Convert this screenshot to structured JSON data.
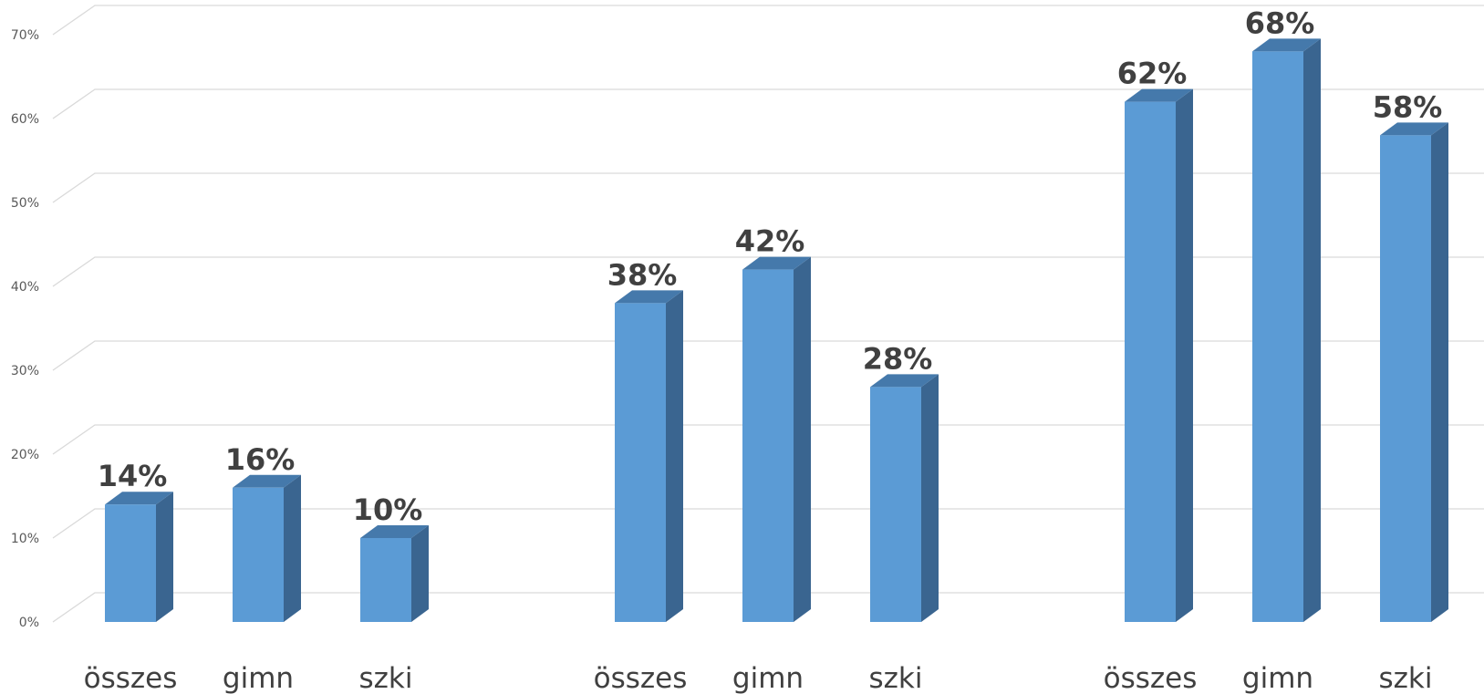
{
  "chart_data": {
    "type": "bar",
    "title": "",
    "xlabel": "",
    "ylabel": "",
    "ylim": [
      0,
      70
    ],
    "y_ticks": [
      0,
      10,
      20,
      30,
      40,
      50,
      60,
      70
    ],
    "y_tick_labels": [
      "0%",
      "10%",
      "20%",
      "30%",
      "40%",
      "50%",
      "60%",
      "70%"
    ],
    "grid": true,
    "style": "3d-column",
    "bar_color": "#5b9bd5",
    "bar_side_color": "#3a6590",
    "bar_top_color": "#4579ab",
    "groups": [
      {
        "categories": [
          "összes",
          "gimn",
          "szki"
        ],
        "values": [
          14,
          16,
          10
        ],
        "value_labels": [
          "14%",
          "16%",
          "10%"
        ]
      },
      {
        "categories": [
          "összes",
          "gimn",
          "szki"
        ],
        "values": [
          38,
          42,
          28
        ],
        "value_labels": [
          "38%",
          "42%",
          "28%"
        ]
      },
      {
        "categories": [
          "összes",
          "gimn",
          "szki"
        ],
        "values": [
          62,
          68,
          58
        ],
        "value_labels": [
          "62%",
          "68%",
          "58%"
        ]
      }
    ]
  }
}
